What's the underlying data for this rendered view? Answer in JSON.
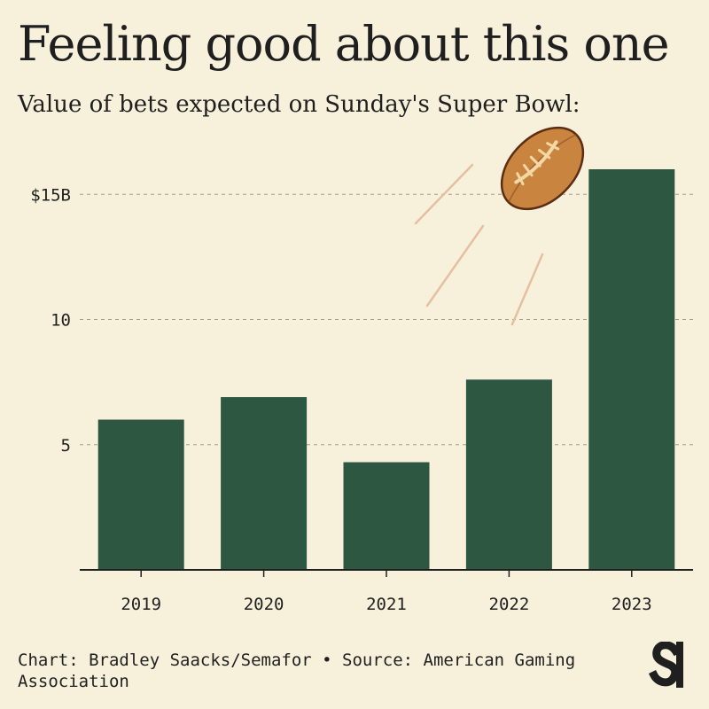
{
  "title": "Feeling good about this one",
  "subtitle": "Value of bets expected on Sunday's Super Bowl:",
  "footer": "Chart: Bradley Saacks/Semafor • Source: American Gaming Association",
  "colors": {
    "background": "#f7f1dc",
    "bar": "#2e5742",
    "grid": "#a59e88",
    "text": "#1f1f1f",
    "football": "#c9853f",
    "football_outline": "#5b2d13",
    "laces": "#f3d8a4",
    "motion_lines": "#e6bfa2"
  },
  "icons": [
    "football-icon",
    "semafor-logo-icon"
  ],
  "chart_data": {
    "type": "bar",
    "categories": [
      "2019",
      "2020",
      "2021",
      "2022",
      "2023"
    ],
    "values": [
      6.0,
      6.9,
      4.3,
      7.6,
      16.0
    ],
    "yticks": [
      {
        "value": 5,
        "label": "5"
      },
      {
        "value": 10,
        "label": "10"
      },
      {
        "value": 15,
        "label": "$15B"
      }
    ],
    "ylim": [
      0,
      16
    ],
    "grid": true,
    "xlabel": "",
    "ylabel": ""
  }
}
